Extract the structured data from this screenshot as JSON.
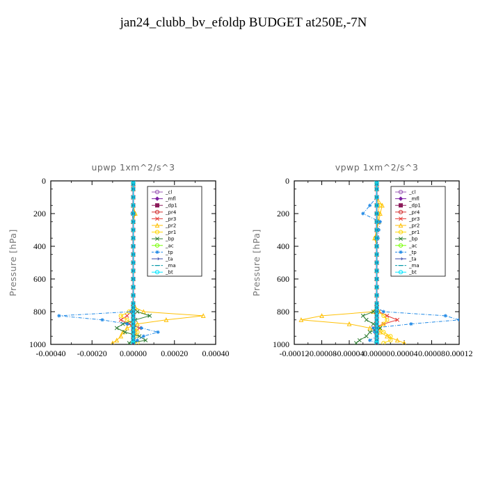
{
  "page": {
    "title": "jan24_clubb_bv_efoldp  BUDGET at250E,-7N"
  },
  "chart_data": [
    {
      "type": "line",
      "title": "upwp   1xm^2/s^3",
      "ylabel": "Pressure [hPa]",
      "xlim": [
        -0.0004,
        0.0004
      ],
      "ylim": [
        1000,
        0
      ],
      "x_tick_labels": [
        "-0.00040",
        "-0.00020",
        "0.00000",
        "0.00020",
        "0.00040"
      ],
      "x_ticks": [
        -0.0004,
        -0.0002,
        0.0,
        0.0002,
        0.0004
      ],
      "y_tick_labels": [
        "0",
        "200",
        "400",
        "600",
        "800",
        "1000"
      ],
      "y_ticks": [
        0,
        200,
        400,
        600,
        800,
        1000
      ],
      "legend_position": "top-right",
      "levels": [
        3,
        20,
        50,
        100,
        150,
        200,
        250,
        300,
        350,
        400,
        450,
        500,
        550,
        600,
        650,
        700,
        750,
        775,
        800,
        825,
        850,
        875,
        900,
        925,
        950,
        975,
        992
      ],
      "series": [
        {
          "name": "_cl",
          "color": "#9B59B6",
          "marker": "circle",
          "values": [
            0,
            0,
            0,
            0,
            0,
            0,
            0,
            0,
            0,
            0,
            0,
            0,
            0,
            0,
            0,
            0,
            0,
            0,
            0,
            0,
            0,
            0,
            0,
            0,
            0,
            0,
            0
          ]
        },
        {
          "name": "_mfl",
          "color": "#7B1FA2",
          "marker": "diamond",
          "values": [
            0,
            0,
            0,
            0,
            0,
            0,
            0,
            0,
            0,
            0,
            0,
            0,
            0,
            0,
            0,
            0,
            0,
            0,
            0,
            0,
            0,
            0,
            0,
            0,
            0,
            0,
            0
          ]
        },
        {
          "name": "_dp1",
          "color": "#8B1A5A",
          "marker": "square",
          "values": [
            0,
            0,
            0,
            0,
            0,
            0,
            0,
            0,
            0,
            0,
            0,
            0,
            0,
            0,
            0,
            0,
            0,
            0,
            0,
            0,
            0,
            0,
            0,
            0,
            0,
            0,
            0
          ]
        },
        {
          "name": "_pr4",
          "color": "#D32F2F",
          "marker": "circle",
          "values": [
            0,
            0,
            0,
            0,
            0,
            0,
            0,
            0,
            0,
            0,
            0,
            0,
            0,
            0,
            0,
            0,
            0,
            0,
            0,
            0,
            0,
            0,
            0,
            0,
            0,
            0,
            0
          ]
        },
        {
          "name": "_pr3",
          "color": "#E53935",
          "marker": "x",
          "values": [
            0,
            0,
            0,
            0,
            0,
            0,
            0,
            0,
            0,
            0,
            0,
            0,
            0,
            0,
            0,
            0,
            0,
            0,
            -1e-05,
            -3e-05,
            -6e-05,
            -2e-05,
            3e-05,
            1e-05,
            0,
            0,
            0
          ]
        },
        {
          "name": "_pr2",
          "color": "#FFC107",
          "marker": "triangle",
          "values": [
            0,
            0,
            0,
            0,
            0,
            1e-05,
            0,
            0,
            0,
            0,
            0,
            0,
            0,
            0,
            0,
            0,
            0,
            1e-05,
            5e-05,
            0.00034,
            0.00016,
            2e-05,
            -3e-05,
            -5e-05,
            -6e-05,
            -8e-05,
            -0.0001
          ]
        },
        {
          "name": "_pr1",
          "color": "#FFD600",
          "marker": "circle",
          "values": [
            0,
            0,
            0,
            0,
            0,
            5e-06,
            0,
            0,
            0,
            0,
            0,
            0,
            0,
            0,
            0,
            0,
            0,
            0,
            -2e-05,
            -6e-05,
            -3e-05,
            0,
            1e-05,
            2e-05,
            1e-05,
            0,
            2e-05
          ]
        },
        {
          "name": "_bp",
          "color": "#2E7D32",
          "marker": "x",
          "values": [
            0,
            0,
            0,
            0,
            0,
            0,
            0,
            0,
            0,
            0,
            0,
            0,
            0,
            0,
            0,
            0,
            0,
            0,
            2e-05,
            8e-05,
            1e-05,
            -5e-05,
            -8e-05,
            -4e-05,
            3e-05,
            6e-05,
            -2e-05
          ]
        },
        {
          "name": "_ac",
          "color": "#76FF03",
          "marker": "circle",
          "values": [
            0,
            0,
            0,
            0,
            0,
            0,
            0,
            0,
            0,
            0,
            0,
            0,
            0,
            0,
            0,
            0,
            0,
            0,
            0,
            0,
            0,
            0,
            0,
            0,
            0,
            0,
            0
          ]
        },
        {
          "name": "_tp",
          "color": "#1E88E5",
          "marker": "star",
          "values": [
            0,
            0,
            0,
            0,
            0,
            -5e-06,
            0,
            0,
            0,
            0,
            0,
            0,
            0,
            0,
            0,
            0,
            0,
            0,
            -1e-05,
            -0.00036,
            -0.00015,
            -3e-05,
            4e-05,
            0.00012,
            5e-05,
            2e-05,
            0
          ]
        },
        {
          "name": "_ta",
          "color": "#3949AB",
          "marker": "arrow",
          "values": [
            0,
            0,
            0,
            0,
            0,
            0,
            0,
            0,
            0,
            0,
            0,
            0,
            0,
            0,
            0,
            0,
            0,
            0,
            0,
            0,
            0,
            0,
            0,
            0,
            0,
            0,
            0
          ]
        },
        {
          "name": "_ma",
          "color": "#0097A7",
          "marker": "dash",
          "values": [
            0,
            0,
            0,
            0,
            0,
            0,
            0,
            0,
            0,
            0,
            0,
            0,
            0,
            0,
            0,
            0,
            0,
            0,
            0,
            0,
            0,
            0,
            0,
            0,
            0,
            0,
            0
          ]
        },
        {
          "name": "_bt",
          "color": "#00E5FF",
          "marker": "circle",
          "values": [
            0,
            0,
            0,
            0,
            0,
            0,
            0,
            0,
            0,
            0,
            0,
            0,
            0,
            0,
            0,
            0,
            0,
            0,
            0,
            0,
            0,
            0,
            0,
            0,
            0,
            0,
            0
          ]
        }
      ]
    },
    {
      "type": "line",
      "title": "vpwp   1xm^2/s^3",
      "ylabel": "Pressure [hPa]",
      "xlim": [
        -0.00012,
        0.00012
      ],
      "ylim": [
        1000,
        0
      ],
      "x_tick_labels": [
        "-0.00012",
        "-0.00008",
        "-0.00004",
        "0.00000",
        "0.00004",
        "0.00008",
        "0.00012"
      ],
      "x_ticks": [
        -0.00012,
        -8e-05,
        -4e-05,
        0.0,
        4e-05,
        8e-05,
        0.00012
      ],
      "y_tick_labels": [
        "0",
        "200",
        "400",
        "600",
        "800",
        "1000"
      ],
      "y_ticks": [
        0,
        200,
        400,
        600,
        800,
        1000
      ],
      "legend_position": "top-right",
      "levels": [
        3,
        20,
        50,
        100,
        150,
        200,
        250,
        300,
        350,
        400,
        450,
        500,
        550,
        600,
        650,
        700,
        750,
        775,
        800,
        825,
        850,
        875,
        900,
        925,
        950,
        975,
        992
      ],
      "series": [
        {
          "name": "_cl",
          "color": "#9B59B6",
          "marker": "circle",
          "values": [
            0,
            0,
            0,
            0,
            0,
            0,
            0,
            0,
            0,
            0,
            0,
            0,
            0,
            0,
            0,
            0,
            0,
            0,
            0,
            0,
            0,
            0,
            0,
            0,
            0,
            0,
            0
          ]
        },
        {
          "name": "_mfl",
          "color": "#7B1FA2",
          "marker": "diamond",
          "values": [
            0,
            0,
            0,
            0,
            0,
            0,
            0,
            0,
            0,
            0,
            0,
            0,
            0,
            0,
            0,
            0,
            0,
            0,
            0,
            0,
            0,
            0,
            0,
            0,
            0,
            0,
            0
          ]
        },
        {
          "name": "_dp1",
          "color": "#8B1A5A",
          "marker": "square",
          "values": [
            0,
            0,
            0,
            0,
            0,
            0,
            0,
            0,
            0,
            0,
            0,
            0,
            0,
            0,
            0,
            0,
            0,
            0,
            0,
            0,
            0,
            0,
            0,
            0,
            0,
            0,
            0
          ]
        },
        {
          "name": "_pr4",
          "color": "#D32F2F",
          "marker": "circle",
          "values": [
            0,
            0,
            0,
            0,
            0,
            0,
            0,
            0,
            0,
            0,
            0,
            0,
            0,
            0,
            0,
            0,
            0,
            0,
            0,
            0,
            0,
            0,
            0,
            0,
            0,
            0,
            0
          ]
        },
        {
          "name": "_pr3",
          "color": "#E53935",
          "marker": "x",
          "values": [
            0,
            0,
            0,
            0,
            0,
            0,
            0,
            0,
            0,
            0,
            0,
            0,
            0,
            0,
            0,
            0,
            0,
            0,
            3e-06,
            1.5e-05,
            3e-05,
            1e-05,
            -5e-06,
            0,
            0,
            0,
            0
          ]
        },
        {
          "name": "_pr2",
          "color": "#FFC107",
          "marker": "triangle",
          "values": [
            0,
            0,
            0,
            0,
            8e-06,
            5e-06,
            3e-06,
            0,
            -3e-06,
            0,
            0,
            0,
            0,
            0,
            0,
            0,
            0,
            0,
            -5e-06,
            -8e-05,
            -0.00011,
            -4e-05,
            -1e-05,
            5e-06,
            1.5e-05,
            3e-05,
            4e-05
          ]
        },
        {
          "name": "_pr1",
          "color": "#FFD600",
          "marker": "circle",
          "values": [
            0,
            0,
            0,
            0,
            4e-06,
            2e-06,
            2e-06,
            0,
            -2e-06,
            0,
            0,
            0,
            0,
            0,
            0,
            0,
            0,
            0,
            2e-06,
            1e-05,
            1.5e-05,
            1e-05,
            3e-06,
            1e-05,
            2e-05,
            2e-05,
            1e-05
          ]
        },
        {
          "name": "_bp",
          "color": "#2E7D32",
          "marker": "x",
          "values": [
            0,
            0,
            0,
            0,
            0,
            0,
            0,
            0,
            0,
            0,
            0,
            0,
            0,
            0,
            0,
            0,
            0,
            0,
            -5e-06,
            -2e-05,
            -1.5e-05,
            -5e-06,
            5e-06,
            -1e-05,
            -1.5e-05,
            -2.5e-05,
            -3e-05
          ]
        },
        {
          "name": "_ac",
          "color": "#76FF03",
          "marker": "circle",
          "values": [
            0,
            0,
            0,
            0,
            0,
            0,
            0,
            0,
            0,
            0,
            0,
            0,
            0,
            0,
            0,
            0,
            0,
            0,
            0,
            0,
            0,
            0,
            0,
            0,
            0,
            0,
            0
          ]
        },
        {
          "name": "_tp",
          "color": "#1E88E5",
          "marker": "star",
          "values": [
            0,
            0,
            0,
            0,
            -1e-05,
            -2e-05,
            5e-06,
            3e-06,
            2e-06,
            0,
            0,
            0,
            0,
            0,
            0,
            0,
            0,
            0,
            1e-05,
            0.0001,
            0.00012,
            5e-05,
            -5e-06,
            -3e-06,
            0,
            -1e-05,
            0
          ]
        },
        {
          "name": "_ta",
          "color": "#3949AB",
          "marker": "arrow",
          "values": [
            0,
            0,
            0,
            0,
            0,
            0,
            0,
            0,
            0,
            0,
            0,
            0,
            0,
            0,
            0,
            0,
            0,
            0,
            0,
            0,
            0,
            0,
            0,
            0,
            0,
            0,
            0
          ]
        },
        {
          "name": "_ma",
          "color": "#0097A7",
          "marker": "dash",
          "values": [
            0,
            0,
            0,
            0,
            0,
            0,
            0,
            0,
            0,
            0,
            0,
            0,
            0,
            0,
            0,
            0,
            0,
            0,
            0,
            0,
            0,
            0,
            0,
            0,
            0,
            0,
            0
          ]
        },
        {
          "name": "_bt",
          "color": "#00E5FF",
          "marker": "circle",
          "values": [
            0,
            0,
            0,
            0,
            0,
            0,
            0,
            0,
            0,
            0,
            0,
            0,
            0,
            0,
            0,
            0,
            0,
            0,
            0,
            0,
            0,
            0,
            0,
            0,
            0,
            0,
            0
          ]
        }
      ]
    }
  ]
}
